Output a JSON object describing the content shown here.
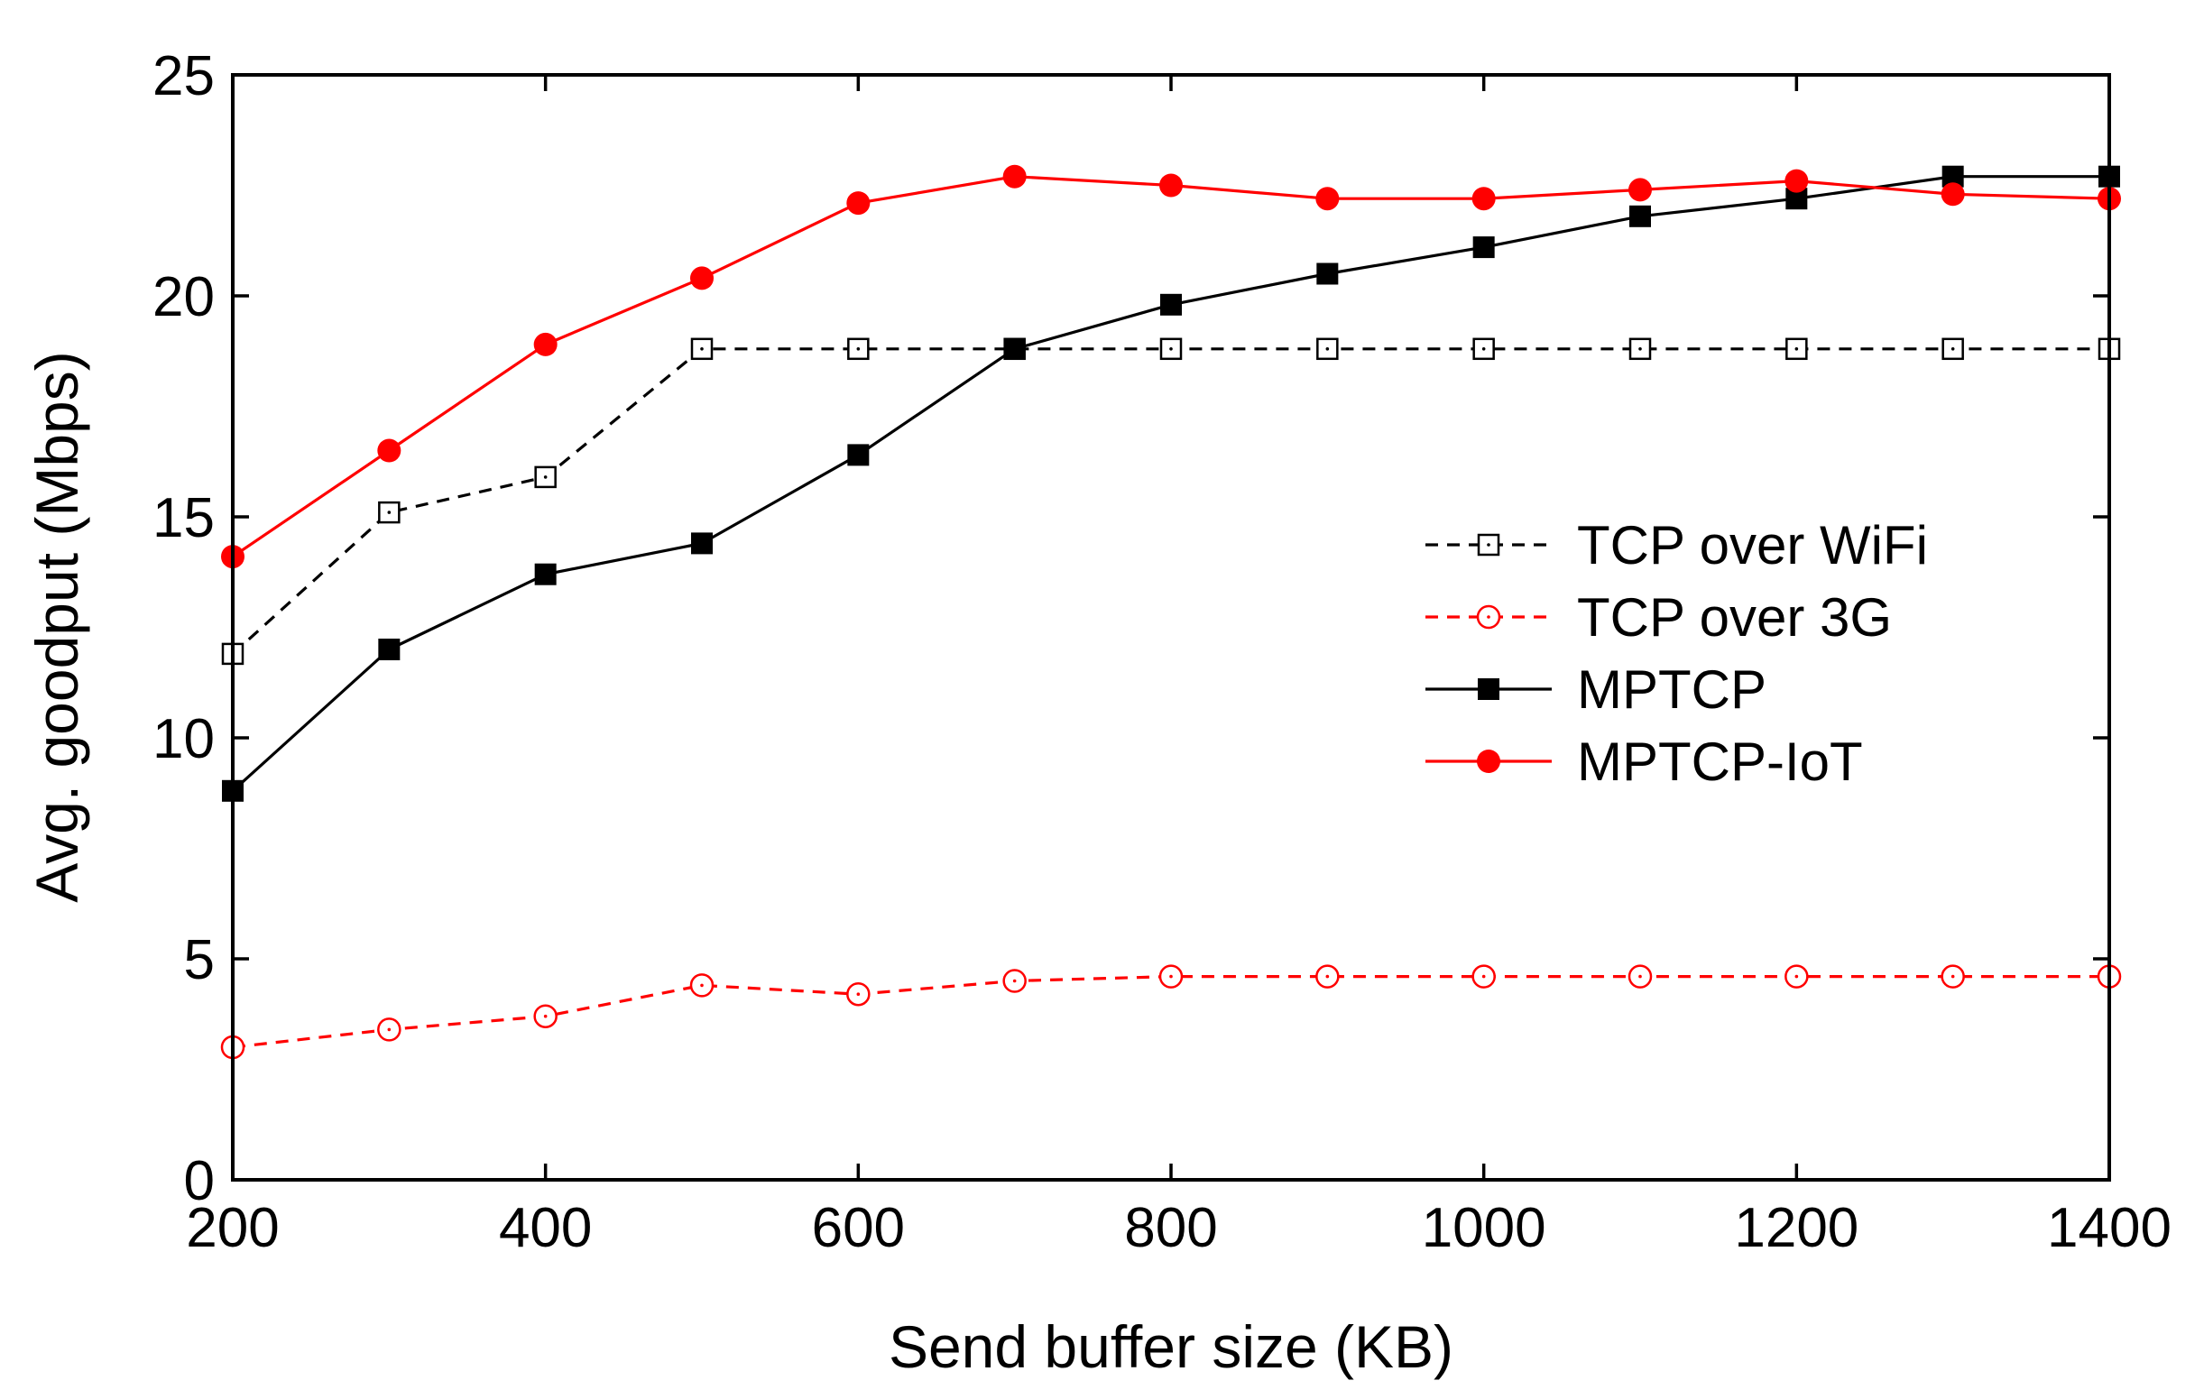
{
  "chart_data": {
    "type": "line",
    "title": "",
    "xlabel": "Send buffer size (KB)",
    "ylabel": "Avg. goodput (Mbps)",
    "xlim": [
      200,
      1400
    ],
    "ylim": [
      0,
      25
    ],
    "xticks": [
      200,
      400,
      600,
      800,
      1000,
      1200,
      1400
    ],
    "yticks": [
      0,
      5,
      10,
      15,
      20,
      25
    ],
    "grid": false,
    "legend_position": "center-right",
    "x": [
      200,
      300,
      400,
      500,
      600,
      700,
      800,
      900,
      1000,
      1100,
      1200,
      1300,
      1400
    ],
    "series": [
      {
        "name": "TCP over WiFi",
        "color": "#000000",
        "line": "dashed",
        "marker": "open-square-dot",
        "values": [
          11.9,
          15.1,
          15.9,
          18.8,
          18.8,
          18.8,
          18.8,
          18.8,
          18.8,
          18.8,
          18.8,
          18.8,
          18.8
        ]
      },
      {
        "name": "TCP over 3G",
        "color": "#ff0000",
        "line": "dashed",
        "marker": "open-circle-dot",
        "values": [
          3.0,
          3.4,
          3.7,
          4.4,
          4.2,
          4.5,
          4.6,
          4.6,
          4.6,
          4.6,
          4.6,
          4.6,
          4.6
        ]
      },
      {
        "name": "MPTCP",
        "color": "#000000",
        "line": "solid",
        "marker": "filled-square",
        "values": [
          8.8,
          12.0,
          13.7,
          14.4,
          16.4,
          18.8,
          19.8,
          20.5,
          21.1,
          21.8,
          22.2,
          22.7,
          22.7
        ]
      },
      {
        "name": "MPTCP-IoT",
        "color": "#ff0000",
        "line": "solid",
        "marker": "filled-circle",
        "values": [
          14.1,
          16.5,
          18.9,
          20.4,
          22.1,
          22.7,
          22.5,
          22.2,
          22.2,
          22.4,
          22.6,
          22.3,
          22.2
        ]
      }
    ]
  }
}
